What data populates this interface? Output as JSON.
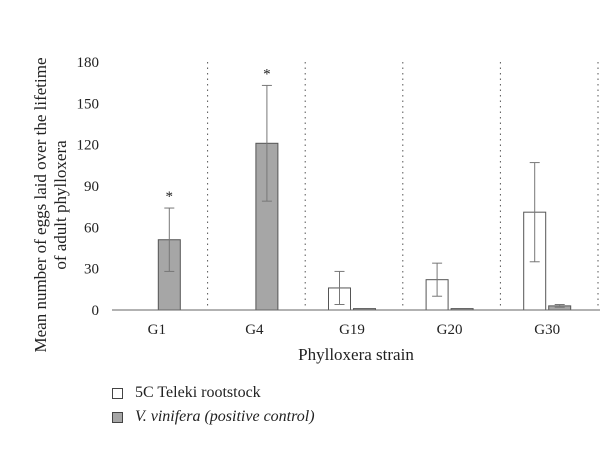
{
  "chart_data": {
    "type": "bar",
    "categories": [
      "G1",
      "G4",
      "G19",
      "G20",
      "G30"
    ],
    "series": [
      {
        "name": "5C Teleki rootstock",
        "values": [
          0,
          0,
          16,
          22,
          71
        ],
        "error": [
          0,
          0,
          12,
          12,
          36
        ],
        "color": "#ffffff"
      },
      {
        "name": "V. vinifera (positive control)",
        "values": [
          51,
          121,
          1,
          1,
          3
        ],
        "error": [
          23,
          42,
          0,
          0,
          1
        ],
        "color": "#a6a6a6"
      }
    ],
    "significance": [
      "*",
      "*",
      "",
      "",
      ""
    ],
    "xlabel": "Phylloxera strain",
    "ylabel_lines": [
      "Mean number of eggs laid over the lifetime",
      "of adult phylloxera"
    ],
    "ylim": [
      0,
      180
    ],
    "yticks": [
      "0",
      "30",
      "60",
      "90",
      "120",
      "150",
      "180"
    ],
    "category_separators": "dotted"
  }
}
